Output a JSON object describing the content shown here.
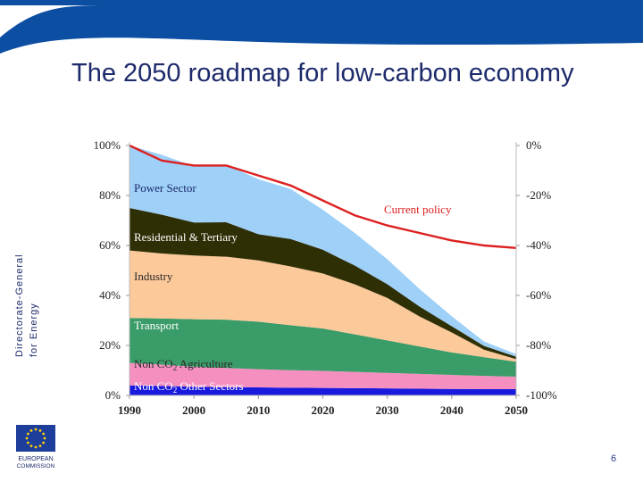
{
  "slide": {
    "title": "The 2050 roadmap for low-carbon economy",
    "page_number": "6",
    "dg_line1": "Directorate-General",
    "dg_line2": "for Energy",
    "logo_line1": "EUROPEAN",
    "logo_line2": "COMMISSION",
    "colors": {
      "banner": "#0b4ea2",
      "title": "#1d2a6b"
    }
  },
  "chart_data": {
    "type": "area",
    "stacked": true,
    "x": [
      1990,
      1995,
      2000,
      2005,
      2010,
      2015,
      2020,
      2025,
      2030,
      2035,
      2040,
      2045,
      2050
    ],
    "xticks": [
      "1990",
      "2000",
      "2010",
      "2020",
      "2030",
      "2040",
      "2050"
    ],
    "yticks_left": [
      "0%",
      "20%",
      "40%",
      "60%",
      "80%",
      "100%"
    ],
    "yticks_right": [
      "-100%",
      "-80%",
      "-60%",
      "-40%",
      "-20%",
      "0%"
    ],
    "ylim": [
      0,
      100
    ],
    "grid": false,
    "series": [
      {
        "name": "Non CO2 Other Sectors",
        "label": "Non CO",
        "label_sub": "2",
        "label_rest": " Other Sectors",
        "color": "#1a1adf",
        "values": [
          4,
          3.8,
          3.5,
          3.3,
          3.2,
          3.1,
          3,
          2.9,
          2.8,
          2.7,
          2.6,
          2.5,
          2.5
        ]
      },
      {
        "name": "Non CO2 Agriculture",
        "label": "Non CO",
        "label_sub": "2",
        "label_rest": " Agriculture",
        "color": "#f48fc0",
        "values": [
          9,
          8.5,
          8,
          7.7,
          7.3,
          7,
          6.8,
          6.5,
          6.2,
          5.9,
          5.6,
          5.3,
          5
        ]
      },
      {
        "name": "Transport",
        "label": "Transport",
        "color": "#3a9c68",
        "values": [
          18,
          18.5,
          19,
          19.3,
          19,
          18,
          17,
          15,
          13,
          11,
          9,
          7.5,
          6
        ]
      },
      {
        "name": "Industry",
        "label": "Industry",
        "color": "#fcc99a",
        "values": [
          27,
          26,
          25.5,
          25.2,
          24.5,
          23.5,
          22,
          20,
          17,
          12,
          8,
          3,
          1
        ]
      },
      {
        "name": "Residential & Tertiary",
        "label": "Residential & Tertiary",
        "color": "#2f2f06",
        "values": [
          17,
          15.5,
          13.2,
          13.8,
          10.5,
          11,
          9.5,
          7.5,
          5.5,
          4,
          2.5,
          1.5,
          1
        ]
      },
      {
        "name": "Power Sector",
        "label": "Power Sector",
        "color": "#9ed0f8",
        "values": [
          25,
          24,
          22.5,
          23,
          22,
          20,
          16,
          13,
          10,
          7,
          4,
          1.8,
          1
        ]
      }
    ],
    "current_policy": {
      "name": "Current policy",
      "color": "#dd2020",
      "values": [
        100,
        94,
        92,
        92,
        88,
        84,
        78,
        72,
        68,
        65,
        62,
        60,
        59
      ]
    }
  }
}
